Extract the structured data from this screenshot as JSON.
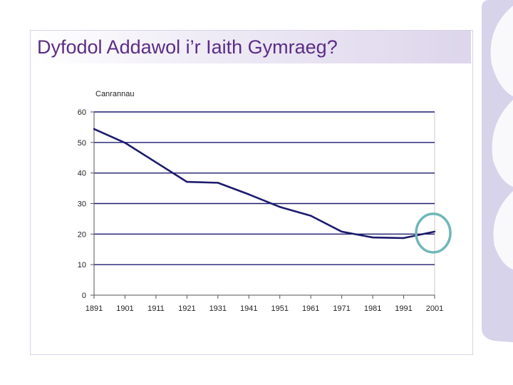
{
  "slide": {
    "title": "Dyfodol Addawol i’r Iaith Gymraeg?"
  },
  "colors": {
    "title": "#5b2d86",
    "line": "#1c1c6e",
    "highlight_circle": "#6fb7b8",
    "decoration": "#d6d3ea"
  },
  "chart_data": {
    "type": "line",
    "ylabel": "Canrannau",
    "xlabel": "",
    "title": "",
    "ylim": [
      0,
      60
    ],
    "yticks": [
      "0",
      "10",
      "20",
      "30",
      "40",
      "50",
      "60"
    ],
    "x": [
      1891,
      1901,
      1911,
      1921,
      1931,
      1941,
      1951,
      1961,
      1971,
      1981,
      1991,
      2001
    ],
    "xtick_labels": [
      "1891",
      "1901",
      "1911",
      "1921",
      "1931",
      "1941",
      "1951",
      "1961",
      "1971",
      "1981",
      "1991",
      "2001"
    ],
    "series": [
      {
        "values": [
          54.4,
          49.9,
          43.5,
          37.1,
          36.8,
          33.0,
          28.9,
          26.0,
          20.8,
          18.9,
          18.7,
          20.8
        ]
      }
    ],
    "grid": "horizontal",
    "legend": "none",
    "annotation": "circle around 1991–2001"
  }
}
